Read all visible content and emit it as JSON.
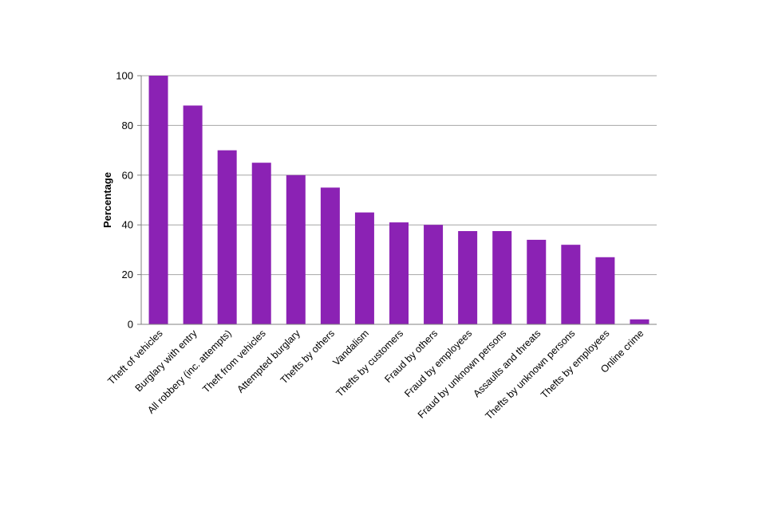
{
  "chart_data": {
    "type": "bar",
    "title": "",
    "xlabel": "",
    "ylabel": "Percentage",
    "ylim": [
      0,
      100
    ],
    "yticks": [
      0,
      20,
      40,
      60,
      80,
      100
    ],
    "grid": true,
    "legend": "none",
    "bar_color": "#8b22b4",
    "categories": [
      "Theft of vehicles",
      "Burglary with entry",
      "All robbery (inc. attempts)",
      "Theft from vehicles",
      "Attempted burglary",
      "Thefts by others",
      "Vandalism",
      "Thefts by customers",
      "Fraud by others",
      "Fraud by employees",
      "Fraud by unknown persons",
      "Assaults and threats",
      "Thefts by unknown persons",
      "Thefts by employees",
      "Online crime"
    ],
    "values": [
      100,
      88,
      70,
      65,
      60,
      55,
      45,
      41,
      40,
      37.5,
      37.5,
      34,
      32,
      27,
      2
    ]
  }
}
